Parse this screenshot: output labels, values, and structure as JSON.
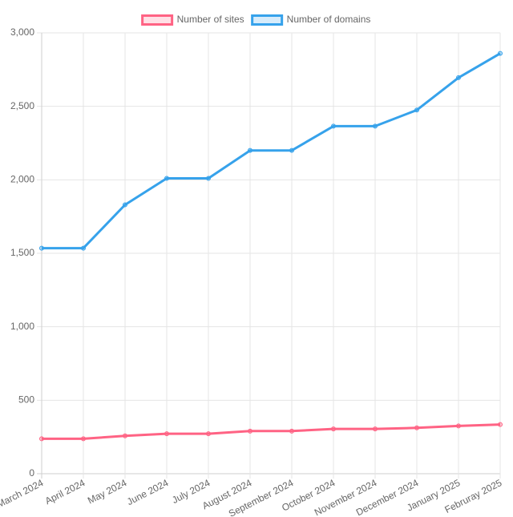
{
  "chart_data": {
    "type": "line",
    "title": "",
    "xlabel": "",
    "ylabel": "",
    "categories": [
      "March 2024",
      "April 2024",
      "May 2024",
      "June 2024",
      "July 2024",
      "August 2024",
      "September 2024",
      "October 2024",
      "November 2024",
      "December 2024",
      "January 2025",
      "Februray 2025"
    ],
    "ylim": [
      0,
      3000
    ],
    "yticks": [
      0,
      500,
      1000,
      1500,
      2000,
      2500,
      3000
    ],
    "ytick_labels": [
      "0",
      "500",
      "1,000",
      "1,500",
      "2,000",
      "2,500",
      "3,000"
    ],
    "grid": true,
    "legend_position": "top-center",
    "series": [
      {
        "name": "Number of sites",
        "color": "#ff6384",
        "values": [
          238,
          238,
          258,
          272,
          272,
          290,
          290,
          305,
          305,
          312,
          325,
          335
        ]
      },
      {
        "name": "Number of domains",
        "color": "#36a2eb",
        "values": [
          1535,
          1535,
          1830,
          2010,
          2010,
          2200,
          2200,
          2365,
          2365,
          2475,
          2695,
          2860
        ]
      }
    ]
  }
}
